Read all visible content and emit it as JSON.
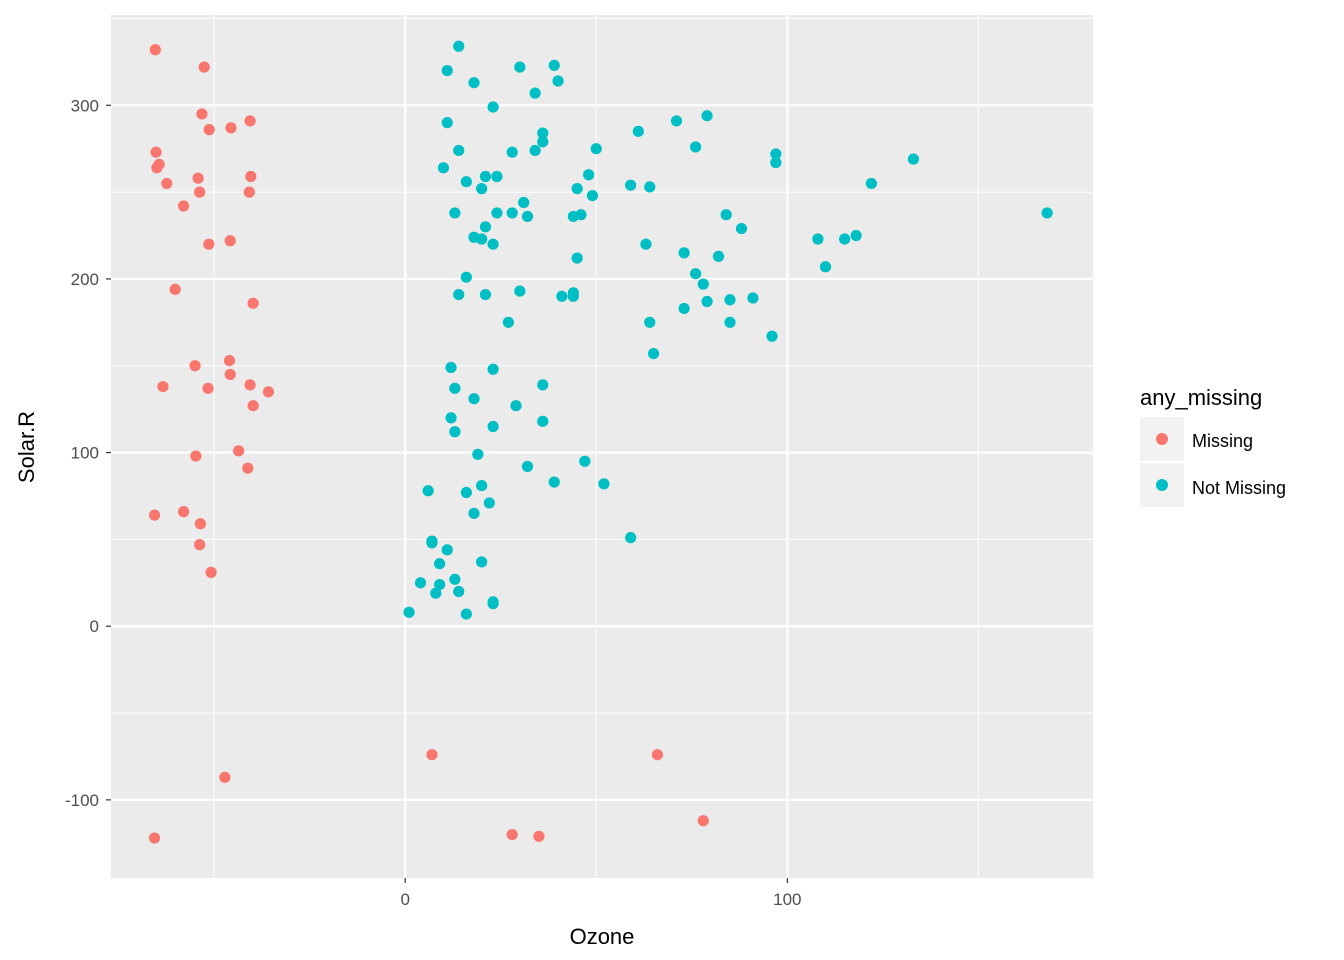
{
  "chart_data": {
    "type": "scatter",
    "xlabel": "Ozone",
    "ylabel": "Solar.R",
    "xlim": [
      -77,
      180
    ],
    "ylim": [
      -145,
      352
    ],
    "x_ticks": [
      0,
      100
    ],
    "y_ticks": [
      -100,
      0,
      100,
      200,
      300
    ],
    "grid": true,
    "legend": {
      "title": "any_missing",
      "placement": "right",
      "entries": [
        "Missing",
        "Not Missing"
      ]
    },
    "colors": {
      "Missing": "#F8766D",
      "Not Missing": "#00BFC4",
      "panel": "#EBEBEB",
      "grid": "#FFFFFF"
    },
    "series": [
      {
        "name": "Missing",
        "points": [
          [
            -65.4,
            332
          ],
          [
            -52.6,
            322
          ],
          [
            -53.2,
            295
          ],
          [
            -51.3,
            286
          ],
          [
            -45.6,
            287
          ],
          [
            -40.6,
            291
          ],
          [
            -65.2,
            273
          ],
          [
            -64.4,
            266
          ],
          [
            -65.0,
            264
          ],
          [
            -62.4,
            255
          ],
          [
            -54.2,
            258
          ],
          [
            -53.8,
            250
          ],
          [
            -40.4,
            259
          ],
          [
            -40.8,
            250
          ],
          [
            -58.0,
            242
          ],
          [
            -51.4,
            220
          ],
          [
            -45.8,
            222
          ],
          [
            -60.2,
            194
          ],
          [
            -39.8,
            186
          ],
          [
            -55.0,
            150
          ],
          [
            -46.0,
            153
          ],
          [
            -45.8,
            145
          ],
          [
            -63.4,
            138
          ],
          [
            -51.6,
            137
          ],
          [
            -40.6,
            139
          ],
          [
            -35.8,
            135
          ],
          [
            -39.8,
            127
          ],
          [
            -43.6,
            101
          ],
          [
            -54.8,
            98
          ],
          [
            -41.2,
            91
          ],
          [
            -65.6,
            64
          ],
          [
            -58.0,
            66
          ],
          [
            -53.6,
            59
          ],
          [
            -53.8,
            47
          ],
          [
            -50.8,
            31
          ],
          [
            -47.2,
            -87
          ],
          [
            -65.6,
            -122
          ],
          [
            7.0,
            -74
          ],
          [
            66.0,
            -74
          ],
          [
            28.0,
            -120
          ],
          [
            35.0,
            -121
          ],
          [
            78.0,
            -112
          ]
        ]
      },
      {
        "name": "Not Missing",
        "points": [
          [
            14,
            334
          ],
          [
            11,
            320
          ],
          [
            30,
            322
          ],
          [
            39,
            323
          ],
          [
            18,
            313
          ],
          [
            40,
            314
          ],
          [
            34,
            307
          ],
          [
            23,
            299
          ],
          [
            11,
            290
          ],
          [
            71,
            291
          ],
          [
            79,
            294
          ],
          [
            36,
            284
          ],
          [
            61,
            285
          ],
          [
            36,
            279
          ],
          [
            14,
            274
          ],
          [
            28,
            273
          ],
          [
            34,
            274
          ],
          [
            50,
            275
          ],
          [
            76,
            276
          ],
          [
            97,
            272
          ],
          [
            97,
            267
          ],
          [
            133,
            269
          ],
          [
            10,
            264
          ],
          [
            48,
            260
          ],
          [
            16,
            256
          ],
          [
            21,
            259
          ],
          [
            24,
            259
          ],
          [
            59,
            254
          ],
          [
            64,
            253
          ],
          [
            122,
            255
          ],
          [
            20,
            252
          ],
          [
            45,
            252
          ],
          [
            49,
            248
          ],
          [
            31,
            244
          ],
          [
            13,
            238
          ],
          [
            24,
            238
          ],
          [
            28,
            238
          ],
          [
            32,
            236
          ],
          [
            44,
            236
          ],
          [
            46,
            237
          ],
          [
            84,
            237
          ],
          [
            168,
            238
          ],
          [
            21,
            230
          ],
          [
            88,
            229
          ],
          [
            18,
            224
          ],
          [
            20,
            223
          ],
          [
            23,
            220
          ],
          [
            63,
            220
          ],
          [
            108,
            223
          ],
          [
            115,
            223
          ],
          [
            118,
            225
          ],
          [
            73,
            215
          ],
          [
            45,
            212
          ],
          [
            82,
            213
          ],
          [
            110,
            207
          ],
          [
            76,
            203
          ],
          [
            16,
            201
          ],
          [
            78,
            197
          ],
          [
            14,
            191
          ],
          [
            21,
            191
          ],
          [
            30,
            193
          ],
          [
            41,
            190
          ],
          [
            44,
            190
          ],
          [
            44,
            192
          ],
          [
            79,
            187
          ],
          [
            85,
            188
          ],
          [
            91,
            189
          ],
          [
            73,
            183
          ],
          [
            27,
            175
          ],
          [
            64,
            175
          ],
          [
            85,
            175
          ],
          [
            96,
            167
          ],
          [
            65,
            157
          ],
          [
            12,
            149
          ],
          [
            23,
            148
          ],
          [
            13,
            137
          ],
          [
            36,
            139
          ],
          [
            18,
            131
          ],
          [
            29,
            127
          ],
          [
            12,
            120
          ],
          [
            23,
            115
          ],
          [
            36,
            118
          ],
          [
            13,
            112
          ],
          [
            19,
            99
          ],
          [
            47,
            95
          ],
          [
            32,
            92
          ],
          [
            39,
            83
          ],
          [
            52,
            82
          ],
          [
            6,
            78
          ],
          [
            16,
            77
          ],
          [
            20,
            81
          ],
          [
            22,
            71
          ],
          [
            18,
            65
          ],
          [
            59,
            51
          ],
          [
            7,
            49
          ],
          [
            7,
            48
          ],
          [
            11,
            44
          ],
          [
            20,
            37
          ],
          [
            9,
            36
          ],
          [
            4,
            25
          ],
          [
            9,
            24
          ],
          [
            13,
            27
          ],
          [
            14,
            20
          ],
          [
            8,
            19
          ],
          [
            23,
            14
          ],
          [
            23,
            13
          ],
          [
            1,
            8
          ],
          [
            16,
            7
          ]
        ]
      }
    ]
  }
}
